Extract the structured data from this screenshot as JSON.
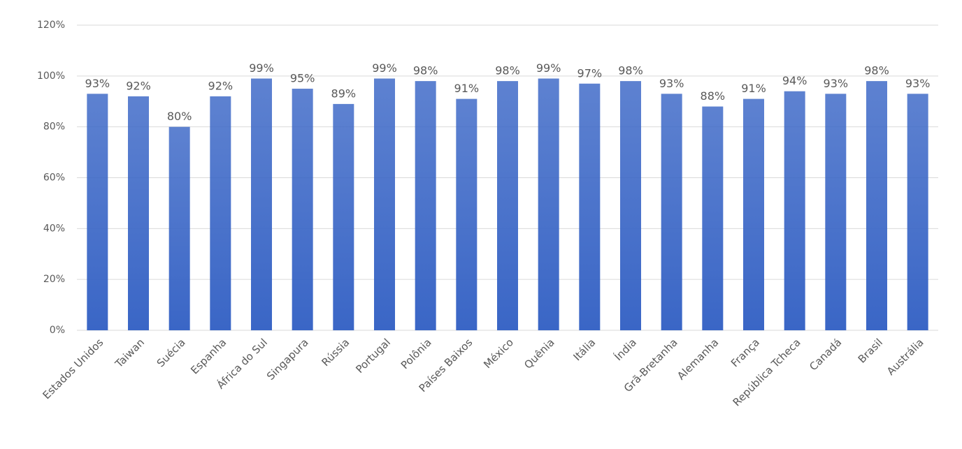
{
  "chart_data": {
    "type": "bar",
    "categories": [
      "Estados Unidos",
      "Taiwan",
      "Suécia",
      "Espanha",
      "África do Sul",
      "Singapura",
      "Rússia",
      "Portugal",
      "Polônia",
      "Países Baixos",
      "México",
      "Quênia",
      "Itália",
      "Índia",
      "Grã-Bretanha",
      "Alemanha",
      "França",
      "República Tcheca",
      "Canadá",
      "Brasil",
      "Austrália"
    ],
    "values": [
      93,
      92,
      80,
      92,
      99,
      95,
      89,
      99,
      98,
      91,
      98,
      99,
      97,
      98,
      93,
      88,
      91,
      94,
      93,
      98,
      93
    ],
    "value_labels": [
      "93%",
      "92%",
      "80%",
      "92%",
      "99%",
      "95%",
      "89%",
      "99%",
      "98%",
      "91%",
      "98%",
      "99%",
      "97%",
      "98%",
      "93%",
      "88%",
      "91%",
      "94%",
      "93%",
      "98%",
      "93%"
    ],
    "color": "#3a66c6",
    "ylim": [
      0,
      120
    ],
    "yticks": [
      {
        "value": 0,
        "label": "0%"
      },
      {
        "value": 20,
        "label": "20%"
      },
      {
        "value": 40,
        "label": "40%"
      },
      {
        "value": 60,
        "label": "60%"
      },
      {
        "value": 80,
        "label": "80%"
      },
      {
        "value": 100,
        "label": "100%"
      },
      {
        "value": 120,
        "label": "120%"
      }
    ],
    "grid": true
  }
}
